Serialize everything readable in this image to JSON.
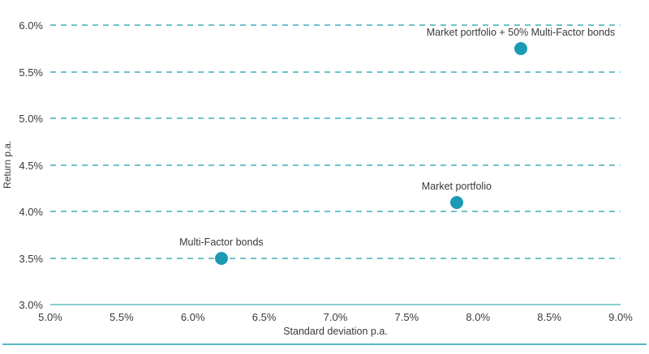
{
  "colors": {
    "point": "#1b9ab4",
    "gridline": "#6fc2cb",
    "baseline": "#8acdd3",
    "separator": "#56b8c2",
    "text": "#3a3a3a"
  },
  "chart_data": {
    "type": "scatter",
    "title": "",
    "xlabel": "Standard deviation p.a.",
    "ylabel": "Return p.a.",
    "xlim": [
      5.0,
      9.0
    ],
    "ylim": [
      3.0,
      6.0
    ],
    "grid": "horizontal dashed gridlines, solid baseline at y-min",
    "legend": "none, points labeled directly",
    "x_ticks": [
      {
        "value": 5.0,
        "label": "5.0%"
      },
      {
        "value": 5.5,
        "label": "5.5%"
      },
      {
        "value": 6.0,
        "label": "6.0%"
      },
      {
        "value": 6.5,
        "label": "6.5%"
      },
      {
        "value": 7.0,
        "label": "7.0%"
      },
      {
        "value": 7.5,
        "label": "7.5%"
      },
      {
        "value": 8.0,
        "label": "8.0%"
      },
      {
        "value": 8.5,
        "label": "8.5%"
      },
      {
        "value": 9.0,
        "label": "9.0%"
      }
    ],
    "y_ticks": [
      {
        "value": 3.0,
        "label": "3.0%"
      },
      {
        "value": 3.5,
        "label": "3.5%"
      },
      {
        "value": 4.0,
        "label": "4.0%"
      },
      {
        "value": 4.5,
        "label": "4.5%"
      },
      {
        "value": 5.0,
        "label": "5.0%"
      },
      {
        "value": 5.5,
        "label": "5.5%"
      },
      {
        "value": 6.0,
        "label": "6.0%"
      }
    ],
    "points": [
      {
        "label": "Multi-Factor bonds",
        "x": 6.2,
        "y": 3.5
      },
      {
        "label": "Market portfolio",
        "x": 7.85,
        "y": 4.1
      },
      {
        "label": "Market portfolio + 50% Multi-Factor bonds",
        "x": 8.3,
        "y": 5.75
      }
    ]
  }
}
